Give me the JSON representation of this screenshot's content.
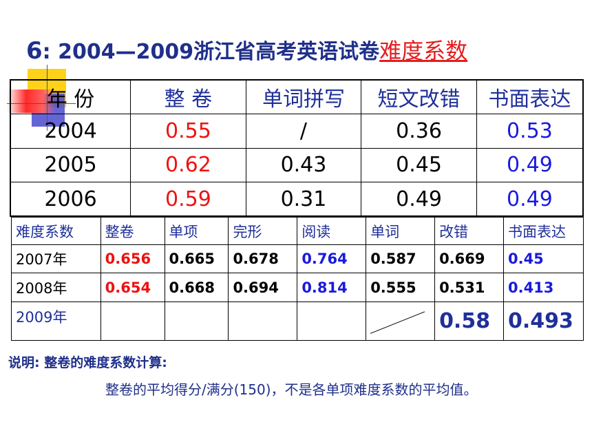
{
  "title": {
    "number": "6",
    "sep": ": ",
    "years": "2004—2009",
    "text": "浙江省高考英语试卷",
    "highlight": "难度系数"
  },
  "table1": {
    "headers": [
      "年 份",
      "整 卷",
      "单词拼写",
      "短文改错",
      "书面表达"
    ],
    "rows": [
      [
        "2004",
        "0.55",
        "/",
        "0.36",
        "0.53"
      ],
      [
        "2005",
        "0.62",
        "0.43",
        "0.45",
        "0.49"
      ],
      [
        "2006",
        "0.59",
        "0.31",
        "0.49",
        "0.49"
      ]
    ]
  },
  "table2": {
    "headers": [
      "难度系数",
      "整卷",
      "单项",
      "完形",
      "阅读",
      "单词",
      "改错",
      "书面表达"
    ],
    "rows": [
      [
        "2007年",
        "0.656",
        "0.665",
        "0.678",
        "0.764",
        "0.587",
        "0.669",
        "0.45"
      ],
      [
        "2008年",
        "0.654",
        "0.668",
        "0.694",
        "0.814",
        "0.555",
        "0.531",
        "0.413"
      ],
      [
        "2009年",
        "",
        "",
        "",
        "",
        "",
        "0.58",
        "0.493"
      ]
    ]
  },
  "note": {
    "label": "说明: 整卷的难度系数计算:",
    "text": "整卷的平均得分/满分(150)，不是各单项难度系数的平均值。"
  },
  "colors": {
    "title": "#1f2f8a",
    "accent": "#e41e1e",
    "blue": "#1a1adf"
  }
}
